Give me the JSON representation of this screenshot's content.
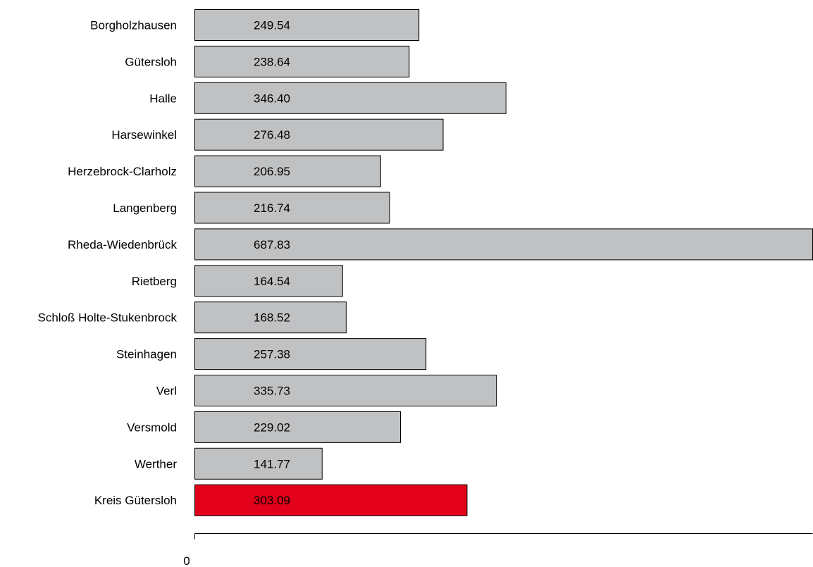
{
  "chart_data": {
    "type": "bar",
    "orientation": "horizontal",
    "categories": [
      "Borgholzhausen",
      "Gütersloh",
      "Halle",
      "Harsewinkel",
      "Herzebrock-Clarholz",
      "Langenberg",
      "Rheda-Wiedenbrück",
      "Rietberg",
      "Schloß Holte-Stukenbrock",
      "Steinhagen",
      "Verl",
      "Versmold",
      "Werther",
      "Kreis Gütersloh"
    ],
    "values": [
      249.54,
      238.64,
      346.4,
      276.48,
      206.95,
      216.74,
      687.83,
      164.54,
      168.52,
      257.38,
      335.73,
      229.02,
      141.77,
      303.09
    ],
    "value_labels": [
      "249.54",
      "238.64",
      "346.40",
      "276.48",
      "206.95",
      "216.74",
      "687.83",
      "164.54",
      "168.52",
      "257.38",
      "335.73",
      "229.02",
      "141.77",
      "303.09"
    ],
    "x_ticks": [
      "0"
    ],
    "xlim": [
      0,
      687.83
    ],
    "title": "",
    "xlabel": "",
    "ylabel": "",
    "grid": false,
    "colors": {
      "bar": "#c0c1c3",
      "highlight": "#e2001a",
      "highlight_category": "Kreis Gütersloh",
      "outline": "#000000"
    }
  }
}
